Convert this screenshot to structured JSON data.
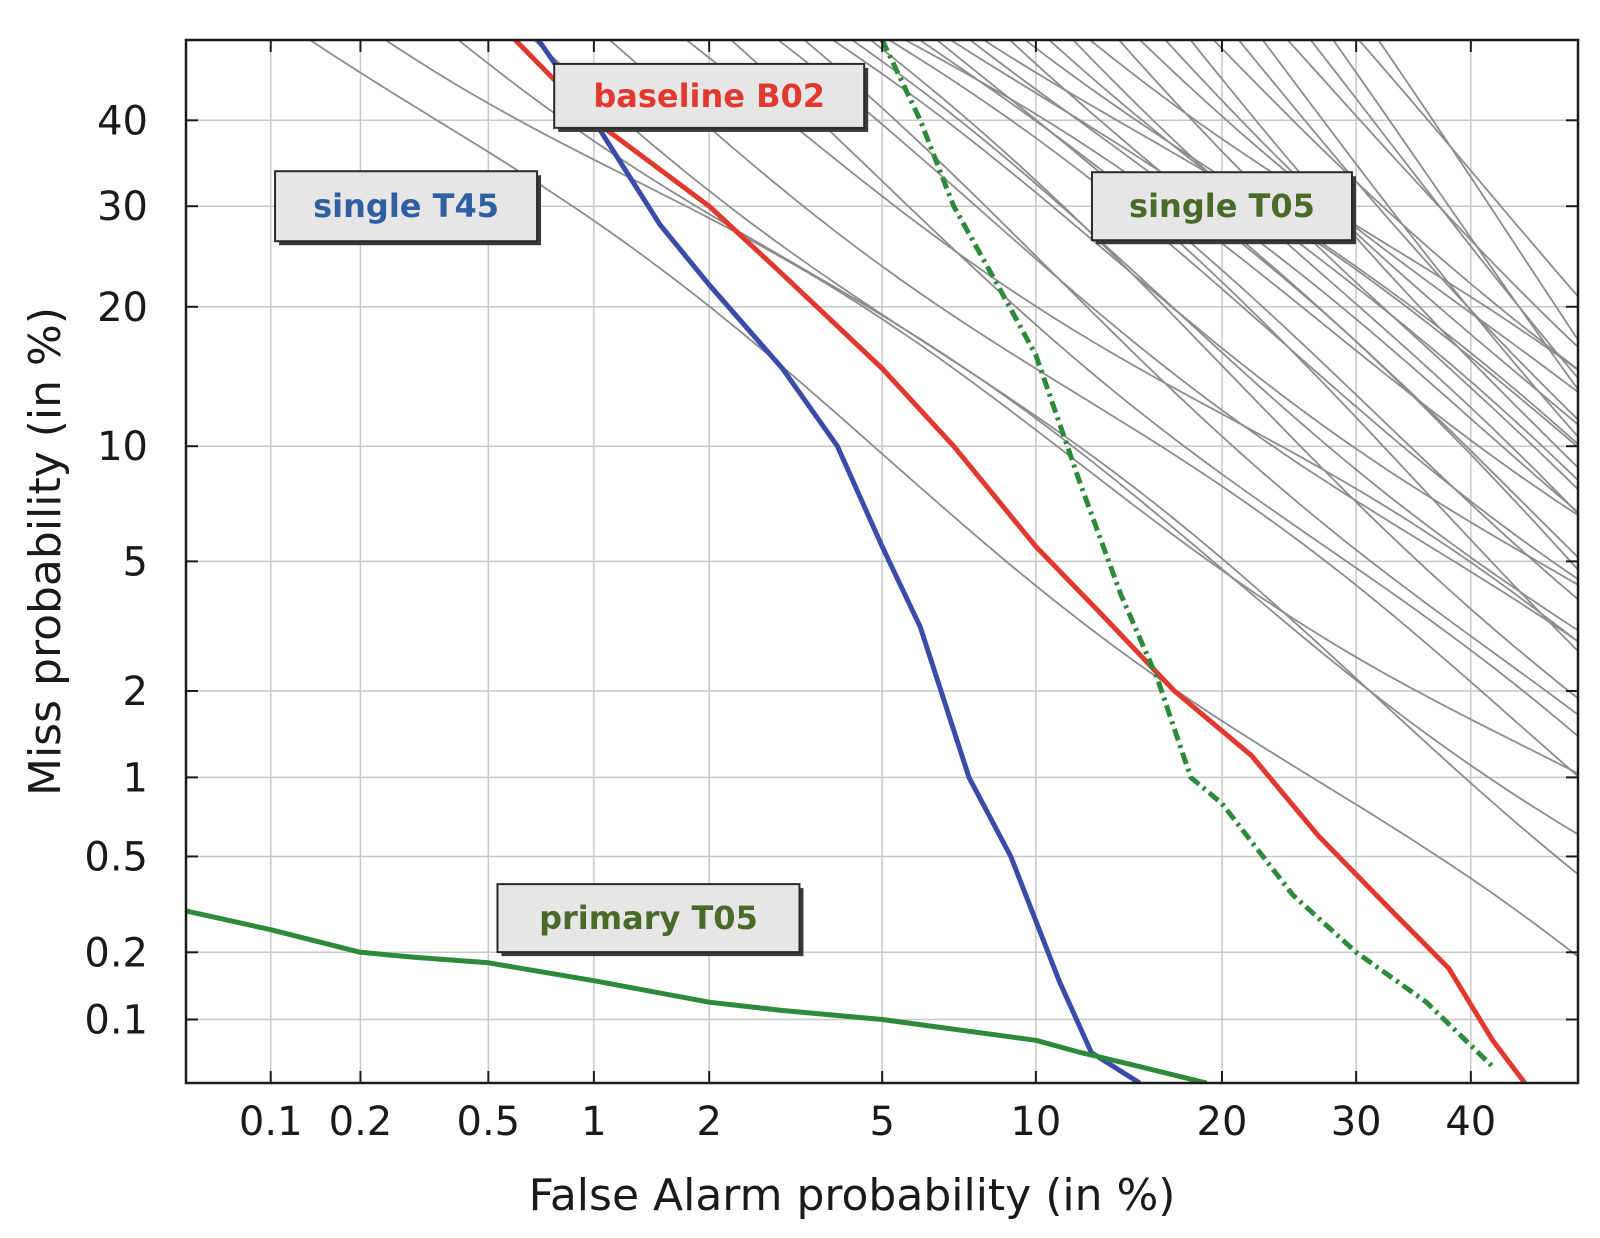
{
  "chart_data": {
    "type": "line",
    "chart_kind": "DET curve",
    "scale": "normal-deviate (probit) on both axes",
    "xlabel": "False Alarm probability (in %)",
    "ylabel": "Miss probability (in %)",
    "xlim": [
      0.05,
      50
    ],
    "ylim": [
      0.05,
      50
    ],
    "x_ticks": [
      0.1,
      0.2,
      0.5,
      1,
      2,
      5,
      10,
      20,
      30,
      40
    ],
    "x_tick_labels": [
      "0.1",
      "0.2",
      "0.5",
      "1",
      "2",
      "5",
      "10",
      "20",
      "30",
      "40"
    ],
    "y_ticks": [
      0.1,
      0.2,
      0.5,
      1,
      2,
      5,
      10,
      20,
      30,
      40
    ],
    "y_tick_labels": [
      "0.1",
      "0.2",
      "0.5",
      "1",
      "2",
      "5",
      "10",
      "20",
      "30",
      "40"
    ],
    "grid": true,
    "highlighted_series": [
      {
        "label": "single T45",
        "color": "#3a4ca8",
        "style": "solid",
        "x": [
          0.7,
          1.0,
          1.5,
          2.0,
          3.0,
          4.0,
          5.0,
          6.0,
          7.5,
          9.0,
          11.0,
          12.5,
          15.0
        ],
        "y": [
          50,
          40,
          28,
          22,
          15,
          10,
          5.5,
          3.2,
          1.0,
          0.5,
          0.15,
          0.07,
          0.05
        ]
      },
      {
        "label": "baseline B02",
        "color": "#e03a30",
        "style": "solid",
        "x": [
          0.6,
          1.0,
          2.0,
          3.0,
          5.0,
          7.0,
          10.0,
          13.0,
          17.0,
          22.0,
          27.0,
          33.0,
          38.0,
          42.0,
          45.0
        ],
        "y": [
          50,
          40,
          30,
          23,
          15,
          10,
          5.5,
          3.5,
          2.0,
          1.2,
          0.6,
          0.3,
          0.17,
          0.08,
          0.05
        ]
      },
      {
        "label": "single T05",
        "color": "#2e8a3a",
        "style": "dash-dot",
        "x": [
          5.0,
          6.0,
          7.0,
          8.5,
          10.0,
          12.0,
          14.0,
          16.0,
          18.0,
          20.0,
          25.0,
          30.0,
          36.0,
          42.0
        ],
        "y": [
          50,
          40,
          30,
          22,
          16,
          8,
          4,
          2.2,
          1.0,
          0.8,
          0.35,
          0.2,
          0.12,
          0.06
        ]
      },
      {
        "label": "primary T05",
        "color": "#2e8a3a",
        "style": "solid",
        "x": [
          0.05,
          0.1,
          0.2,
          0.3,
          0.5,
          1.0,
          2.0,
          3.0,
          5.0,
          10.0,
          12.0,
          15.0,
          19.0
        ],
        "y": [
          0.3,
          0.25,
          0.2,
          0.19,
          0.18,
          0.15,
          0.12,
          0.11,
          0.1,
          0.08,
          0.07,
          0.06,
          0.05
        ]
      }
    ],
    "background_series": [
      {
        "d": 2.95,
        "s": 1.0
      },
      {
        "d": 2.75,
        "s": 0.85
      },
      {
        "d": 2.6,
        "s": 0.95
      },
      {
        "d": 2.45,
        "s": 1.05
      },
      {
        "d": 2.3,
        "s": 1.0
      },
      {
        "d": 2.15,
        "s": 0.9
      },
      {
        "d": 2.05,
        "s": 1.1
      },
      {
        "d": 1.95,
        "s": 1.0
      },
      {
        "d": 1.88,
        "s": 1.15
      },
      {
        "d": 1.82,
        "s": 0.95
      },
      {
        "d": 1.76,
        "s": 1.05
      },
      {
        "d": 1.7,
        "s": 1.2
      },
      {
        "d": 1.65,
        "s": 1.0
      },
      {
        "d": 1.6,
        "s": 0.9
      },
      {
        "d": 1.55,
        "s": 1.1
      },
      {
        "d": 1.5,
        "s": 1.25
      },
      {
        "d": 1.45,
        "s": 1.0
      },
      {
        "d": 1.4,
        "s": 1.15
      },
      {
        "d": 1.35,
        "s": 0.95
      },
      {
        "d": 1.3,
        "s": 1.3
      },
      {
        "d": 1.25,
        "s": 1.05
      },
      {
        "d": 1.2,
        "s": 1.2
      },
      {
        "d": 1.15,
        "s": 1.35
      },
      {
        "d": 1.1,
        "s": 1.0
      },
      {
        "d": 1.05,
        "s": 1.4
      },
      {
        "d": 1.0,
        "s": 1.15
      },
      {
        "d": 0.95,
        "s": 1.3
      },
      {
        "d": 0.9,
        "s": 1.5
      },
      {
        "d": 0.85,
        "s": 1.2
      },
      {
        "d": 0.8,
        "s": 1.45
      },
      {
        "d": 0.75,
        "s": 1.6
      },
      {
        "d": 0.7,
        "s": 1.3
      },
      {
        "d": 0.65,
        "s": 1.55
      },
      {
        "d": 0.6,
        "s": 1.75
      },
      {
        "d": 0.55,
        "s": 1.4
      },
      {
        "d": 0.5,
        "s": 1.85
      }
    ],
    "background_color": "#8c8c8c",
    "annotations": [
      {
        "text": "baseline B02",
        "color": "#e03a30"
      },
      {
        "text": "single T45",
        "color": "#2f5fa0"
      },
      {
        "text": "single T05",
        "color": "#4a6a2a"
      },
      {
        "text": "primary T05",
        "color": "#4a6a2a"
      }
    ]
  }
}
